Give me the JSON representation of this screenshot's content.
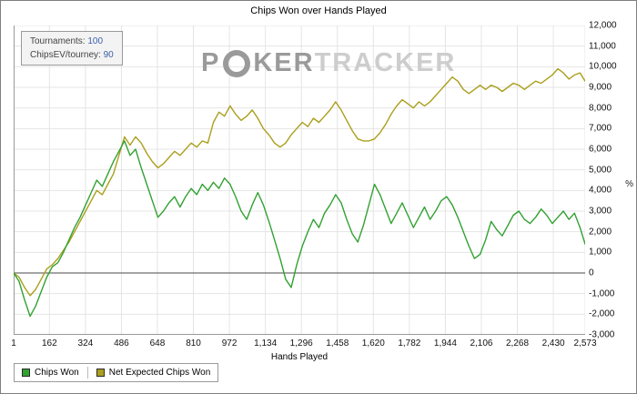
{
  "window": {
    "title": "Chips Won over Hands Played"
  },
  "info_box": {
    "lines": [
      {
        "label": "Tournaments:",
        "value": "100"
      },
      {
        "label": "ChipsEV/tourney:",
        "value": "90"
      }
    ],
    "value_color": "#3a5fa8"
  },
  "watermark": {
    "part1": "P",
    "part2": "KER",
    "part3": "TRACKER"
  },
  "axes": {
    "x_label": "Hands Played",
    "x_tick_values": [
      1,
      162,
      324,
      486,
      648,
      810,
      972,
      1134,
      1296,
      1458,
      1620,
      1782,
      1944,
      2106,
      2268,
      2430,
      2573
    ],
    "x_tick_labels": [
      "1",
      "162",
      "324",
      "486",
      "648",
      "810",
      "972",
      "1,134",
      "1,296",
      "1,458",
      "1,620",
      "1,782",
      "1,944",
      "2,106",
      "2,268",
      "2,430",
      "2,573"
    ],
    "y_tick_values": [
      -3000,
      -2000,
      -1000,
      0,
      1000,
      2000,
      3000,
      4000,
      5000,
      6000,
      7000,
      8000,
      9000,
      10000,
      11000,
      12000
    ],
    "y_tick_labels": [
      "-3,000",
      "-2,000",
      "-1,000",
      "0",
      "1,000",
      "2,000",
      "3,000",
      "4,000",
      "5,000",
      "6,000",
      "7,000",
      "8,000",
      "9,000",
      "10,000",
      "11,000",
      "12,000"
    ],
    "y_axis_symbol": "%",
    "grid_color": "#e4e4e4",
    "zero_line_color": "#6e6e6e",
    "axis_color": "#9a9a9a"
  },
  "legend": [
    {
      "label": "Chips Won",
      "color": "#32a132"
    },
    {
      "label": "Net Expected Chips Won",
      "color": "#ab9f1c"
    }
  ],
  "chart_data": {
    "type": "line",
    "title": "Chips Won over Hands Played",
    "xlabel": "Hands Played",
    "ylabel": "",
    "xlim": [
      1,
      2573
    ],
    "ylim": [
      -3000,
      12000
    ],
    "grid": true,
    "legend_position": "bottom-left",
    "x": [
      1,
      25,
      50,
      75,
      100,
      125,
      150,
      175,
      200,
      225,
      250,
      275,
      300,
      325,
      350,
      375,
      400,
      425,
      450,
      475,
      500,
      525,
      550,
      575,
      600,
      625,
      650,
      675,
      700,
      725,
      750,
      775,
      800,
      825,
      850,
      875,
      900,
      925,
      950,
      975,
      1000,
      1025,
      1050,
      1075,
      1100,
      1125,
      1150,
      1175,
      1200,
      1225,
      1250,
      1275,
      1300,
      1325,
      1350,
      1375,
      1400,
      1425,
      1450,
      1475,
      1500,
      1525,
      1550,
      1575,
      1600,
      1625,
      1650,
      1675,
      1700,
      1725,
      1750,
      1775,
      1800,
      1825,
      1850,
      1875,
      1900,
      1925,
      1950,
      1975,
      2000,
      2025,
      2050,
      2075,
      2100,
      2125,
      2150,
      2175,
      2200,
      2225,
      2250,
      2275,
      2300,
      2325,
      2350,
      2375,
      2400,
      2425,
      2450,
      2475,
      2500,
      2525,
      2550,
      2573
    ],
    "series": [
      {
        "name": "Chips Won",
        "color": "#32a132",
        "values": [
          0,
          -400,
          -1300,
          -2100,
          -1600,
          -900,
          -200,
          300,
          500,
          1000,
          1600,
          2200,
          2700,
          3300,
          3900,
          4500,
          4200,
          4800,
          5400,
          5900,
          6400,
          5700,
          6000,
          5100,
          4300,
          3500,
          2700,
          3000,
          3400,
          3700,
          3200,
          3700,
          4100,
          3800,
          4300,
          4000,
          4400,
          4100,
          4600,
          4300,
          3700,
          3000,
          2600,
          3300,
          3900,
          3300,
          2500,
          1600,
          700,
          -300,
          -700,
          400,
          1300,
          2000,
          2600,
          2200,
          2900,
          3300,
          3800,
          3400,
          2600,
          1900,
          1500,
          2300,
          3300,
          4300,
          3800,
          3100,
          2400,
          2900,
          3400,
          2800,
          2200,
          2700,
          3200,
          2600,
          3000,
          3500,
          3700,
          3300,
          2700,
          2000,
          1300,
          700,
          900,
          1600,
          2500,
          2100,
          1800,
          2300,
          2800,
          3000,
          2600,
          2400,
          2700,
          3100,
          2800,
          2400,
          2700,
          3000,
          2600,
          2900,
          2200,
          1400
        ]
      },
      {
        "name": "Net Expected Chips Won",
        "color": "#ab9f1c",
        "values": [
          0,
          -200,
          -700,
          -1100,
          -800,
          -300,
          200,
          400,
          700,
          1100,
          1500,
          2000,
          2500,
          3000,
          3500,
          4000,
          3800,
          4300,
          4800,
          5700,
          6600,
          6200,
          6600,
          6300,
          5800,
          5400,
          5100,
          5300,
          5600,
          5900,
          5700,
          6000,
          6300,
          6100,
          6400,
          6300,
          7300,
          7800,
          7600,
          8100,
          7700,
          7400,
          7600,
          7900,
          7500,
          7000,
          6700,
          6300,
          6100,
          6300,
          6700,
          7000,
          7300,
          7100,
          7500,
          7300,
          7600,
          7900,
          8300,
          7900,
          7400,
          6900,
          6500,
          6400,
          6400,
          6500,
          6800,
          7200,
          7700,
          8100,
          8400,
          8200,
          8000,
          8300,
          8100,
          8300,
          8600,
          8900,
          9200,
          9500,
          9300,
          8900,
          8700,
          8900,
          9100,
          8900,
          9100,
          9000,
          8800,
          9000,
          9200,
          9100,
          8900,
          9100,
          9300,
          9200,
          9400,
          9600,
          9900,
          9700,
          9400,
          9600,
          9700,
          9300
        ]
      }
    ]
  }
}
